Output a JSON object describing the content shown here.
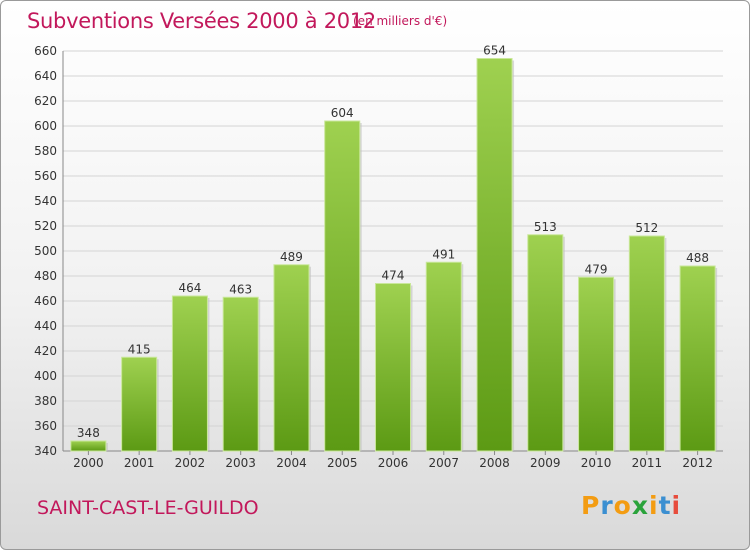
{
  "chart_data": {
    "type": "bar",
    "title": "Subventions Versées 2000 à 2012",
    "subtitle": "(en milliers d'€)",
    "categories": [
      "2000",
      "2001",
      "2002",
      "2003",
      "2004",
      "2005",
      "2006",
      "2007",
      "2008",
      "2009",
      "2010",
      "2011",
      "2012"
    ],
    "values": [
      348,
      415,
      464,
      463,
      489,
      604,
      474,
      491,
      654,
      513,
      479,
      512,
      488
    ],
    "ylim": [
      340,
      660
    ],
    "yticks": [
      340,
      360,
      380,
      400,
      420,
      440,
      460,
      480,
      500,
      520,
      540,
      560,
      580,
      600,
      620,
      640,
      660
    ],
    "grid": true,
    "colors": {
      "bar_top": "#9fd150",
      "bar_bottom": "#5c9a14",
      "title": "#c2185b"
    }
  },
  "commune": "SAINT-CAST-LE-GUILDO",
  "logo": {
    "letters": [
      "P",
      "r",
      "o",
      "x",
      "i",
      "t",
      "i"
    ],
    "colors": [
      "#f39c12",
      "#3b8fd1",
      "#f39c12",
      "#2aa33b",
      "#f39c12",
      "#3b8fd1",
      "#e74c3c"
    ]
  }
}
